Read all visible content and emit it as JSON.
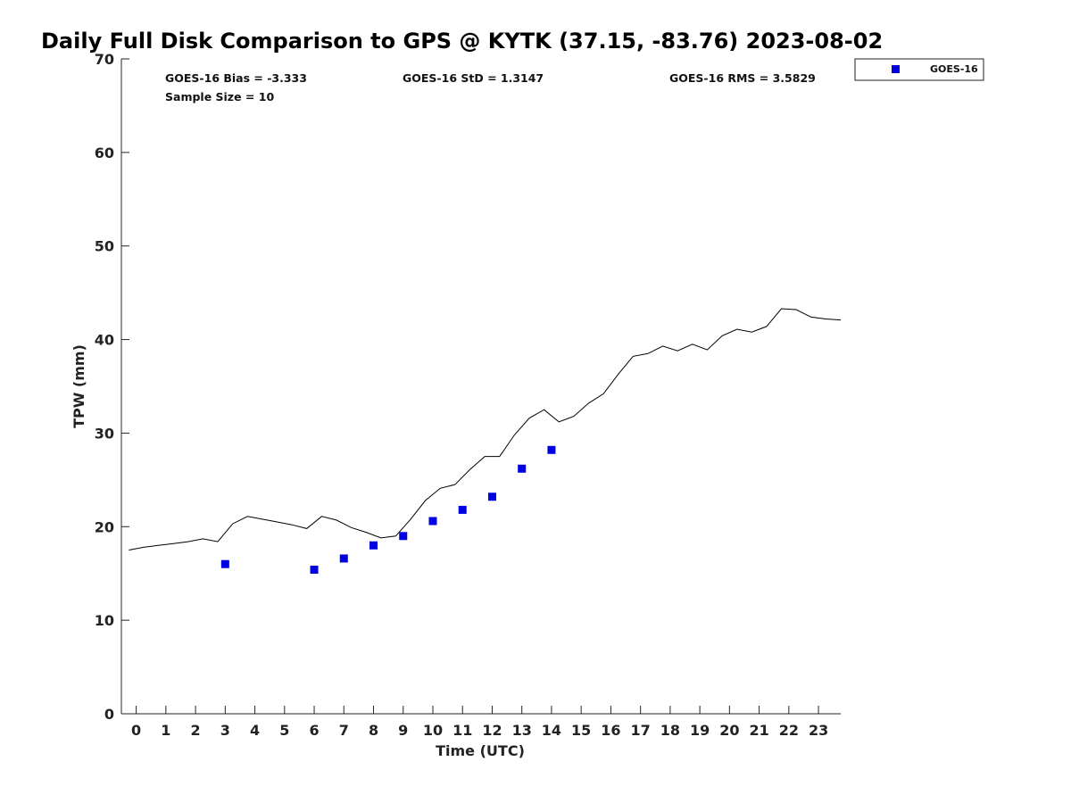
{
  "chart_data": {
    "type": "scatter",
    "title": "Daily Full Disk Comparison to GPS @ KYTK (37.15, -83.76) 2023-08-02",
    "xlabel": "Time (UTC)",
    "ylabel": "TPW (mm)",
    "xlim": [
      -0.5,
      23.75
    ],
    "ylim": [
      0,
      70
    ],
    "x_ticks": [
      0,
      1,
      2,
      3,
      4,
      5,
      6,
      7,
      8,
      9,
      10,
      11,
      12,
      13,
      14,
      15,
      16,
      17,
      18,
      19,
      20,
      21,
      22,
      23
    ],
    "y_ticks": [
      0,
      10,
      20,
      30,
      40,
      50,
      60,
      70
    ],
    "grid": false,
    "legend_position": "outside-top-right",
    "stats": {
      "bias": "GOES-16 Bias = -3.333",
      "std": "GOES-16 StD = 1.3147",
      "rms": "GOES-16 RMS = 3.5829",
      "sample": "Sample Size = 10"
    },
    "series": [
      {
        "name": "",
        "kind": "line",
        "color": "#000000",
        "x": [
          -0.25,
          0.25,
          0.75,
          1.25,
          1.75,
          2.25,
          2.75,
          3.25,
          3.75,
          4.25,
          4.75,
          5.25,
          5.75,
          6.25,
          6.75,
          7.25,
          7.75,
          8.25,
          8.75,
          9.25,
          9.75,
          10.25,
          10.75,
          11.25,
          11.75,
          12.25,
          12.75,
          13.25,
          13.75,
          14.25,
          14.75,
          15.25,
          15.75,
          16.25,
          16.75,
          17.25,
          17.75,
          18.25,
          18.75,
          19.25,
          19.75,
          20.25,
          20.75,
          21.25,
          21.75,
          22.25,
          22.75,
          23.25,
          23.75
        ],
        "y": [
          17.5,
          17.8,
          18.0,
          18.2,
          18.4,
          18.7,
          18.4,
          20.3,
          21.1,
          20.8,
          20.5,
          20.2,
          19.8,
          21.1,
          20.7,
          19.9,
          19.4,
          18.8,
          19.0,
          20.8,
          22.8,
          24.1,
          24.5,
          26.1,
          27.5,
          27.5,
          29.8,
          31.6,
          32.5,
          31.2,
          31.8,
          33.2,
          34.2,
          36.3,
          38.2,
          38.5,
          39.3,
          38.8,
          39.5,
          38.9,
          40.4,
          41.1,
          40.8,
          41.4,
          43.3,
          43.2,
          42.4,
          42.2,
          42.1
        ]
      },
      {
        "name": "GOES-16",
        "kind": "scatter",
        "color": "#0000e0",
        "x": [
          3.0,
          6.0,
          7.0,
          8.0,
          9.0,
          10.0,
          11.0,
          12.0,
          13.0,
          14.0
        ],
        "y": [
          16.0,
          15.4,
          16.6,
          18.0,
          19.0,
          20.6,
          21.8,
          23.2,
          26.2,
          28.2
        ]
      }
    ]
  }
}
